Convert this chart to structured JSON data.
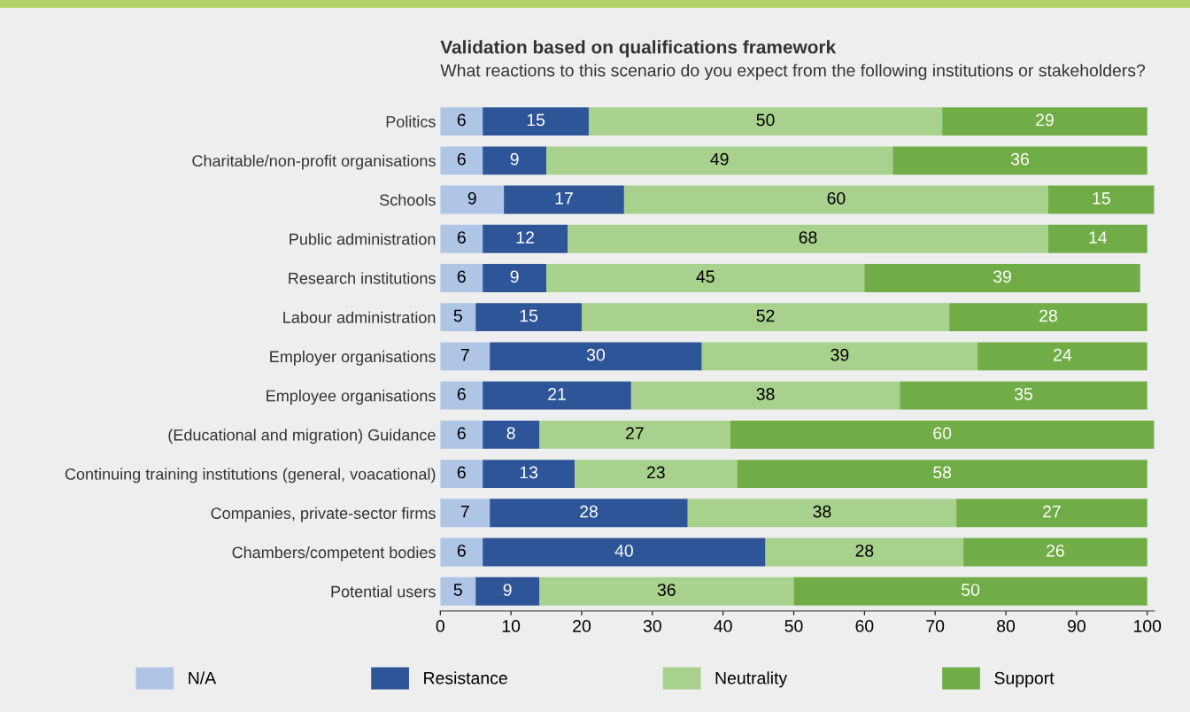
{
  "chart_data": {
    "type": "bar",
    "orientation": "horizontal",
    "stacked": true,
    "title": "Validation based on qualifications framework",
    "subtitle": "What reactions to this scenario do you expect from the following institutions or stakeholders?",
    "categories": [
      "Politics",
      "Charitable/non-profit organisations",
      "Schools",
      "Public administration",
      "Research institutions",
      "Labour administration",
      "Employer organisations",
      "Employee organisations",
      "(Educational and migration) Guidance",
      "Continuing training institutions (general, voacational)",
      "Companies, private-sector firms",
      "Chambers/competent bodies",
      "Potential users"
    ],
    "series": [
      {
        "name": "N/A",
        "color": "#aec5e6",
        "values": [
          6,
          6,
          9,
          6,
          6,
          5,
          7,
          6,
          6,
          6,
          7,
          6,
          5
        ]
      },
      {
        "name": "Resistance",
        "color": "#2e5597",
        "values": [
          15,
          9,
          17,
          12,
          9,
          15,
          30,
          21,
          8,
          13,
          28,
          40,
          9
        ]
      },
      {
        "name": "Neutrality",
        "color": "#a9d18e",
        "values": [
          50,
          49,
          60,
          68,
          45,
          52,
          39,
          38,
          27,
          23,
          38,
          28,
          36
        ]
      },
      {
        "name": "Support",
        "color": "#70ad47",
        "values": [
          29,
          36,
          15,
          14,
          39,
          28,
          24,
          35,
          60,
          58,
          27,
          26,
          50
        ]
      }
    ],
    "xlim": [
      0,
      101
    ],
    "xticks": [
      0,
      10,
      20,
      30,
      40,
      50,
      60,
      70,
      80,
      90,
      100
    ],
    "data_labels": true,
    "grid": false,
    "legend": "bottom"
  }
}
